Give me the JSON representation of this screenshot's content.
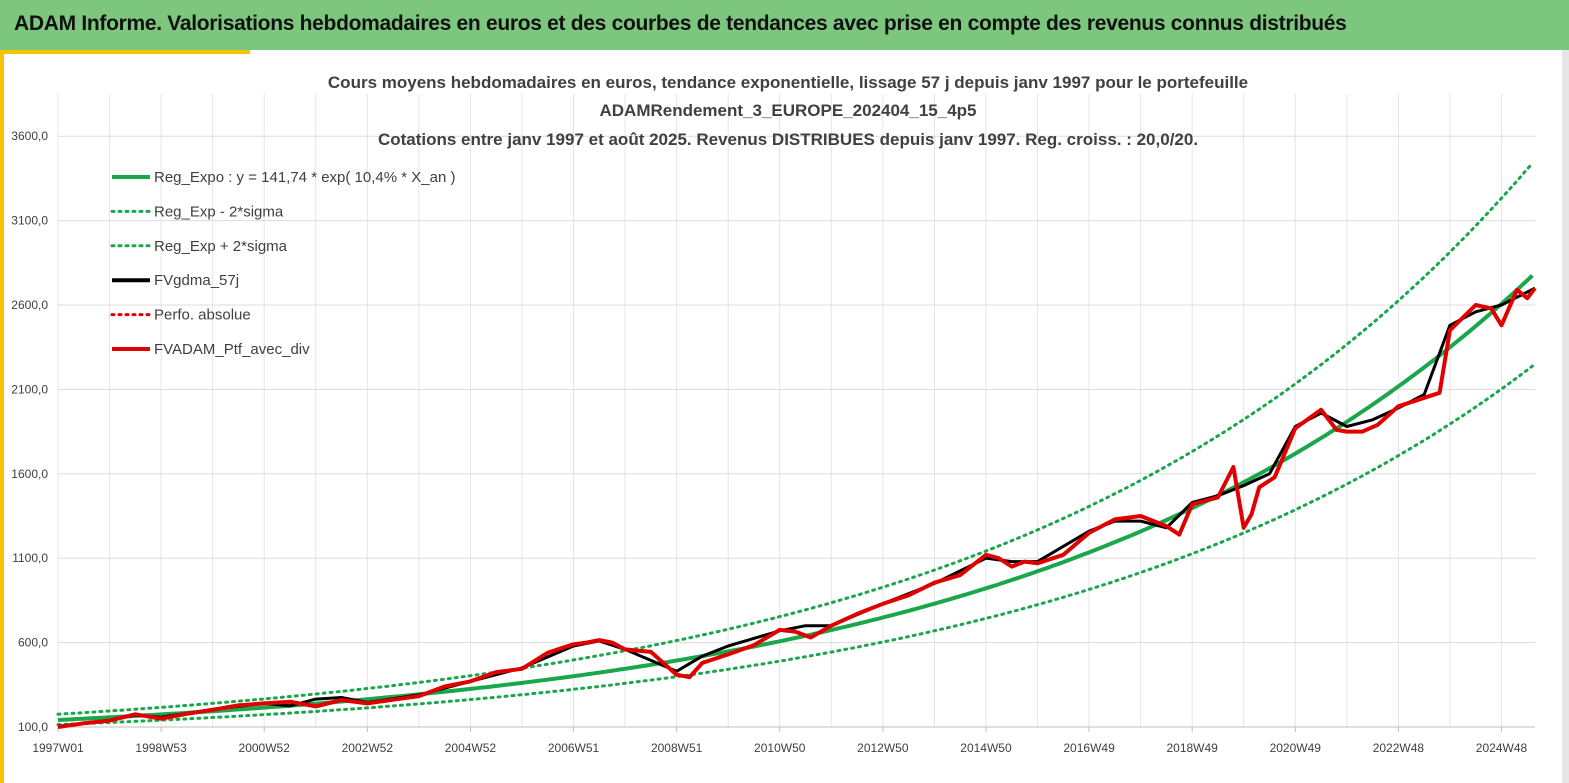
{
  "banner": {
    "title": "ADAM Informe. Valorisations hebdomadaires en euros et des courbes de tendances avec prise en compte des revenus connus distribués"
  },
  "chart_data": {
    "type": "line",
    "title": [
      "Cours moyens hebdomadaires  en euros, tendance exponentielle, lissage 57 j depuis janv 1997 pour le portefeuille",
      "ADAMRendement_3_EUROPE_202404_15_4p5",
      "Cotations entre janv 1997 et août 2025. Revenus DISTRIBUES depuis janv 1997. Reg. croiss. : 20,0/20."
    ],
    "x_tick_labels": [
      "1997W01",
      "1998W53",
      "2000W52",
      "2002W52",
      "2004W52",
      "2006W51",
      "2008W51",
      "2010W50",
      "2012W50",
      "2014W50",
      "2016W49",
      "2018W49",
      "2020W49",
      "2022W48",
      "2024W48"
    ],
    "x_tick_years": [
      1997.0,
      1999.0,
      2001.0,
      2003.0,
      2005.0,
      2007.0,
      2009.0,
      2011.0,
      2013.0,
      2015.0,
      2017.0,
      2019.0,
      2021.0,
      2023.0,
      2025.0
    ],
    "x_range": [
      1997.0,
      2025.65
    ],
    "ylim": [
      100,
      3850
    ],
    "y_ticks": [
      100,
      600,
      1100,
      1600,
      2100,
      2600,
      3100,
      3600
    ],
    "y_tick_labels": [
      "100,0",
      "600,0",
      "1100,0",
      "1600,0",
      "2100,0",
      "2600,0",
      "3100,0",
      "3600,0"
    ],
    "grid": true,
    "legend_position": "top-left",
    "regression": {
      "a": 141.74,
      "rate": 0.104,
      "sigma_factor": 1.24
    },
    "series": [
      {
        "name": "Reg_Expo : y = 141,74 * exp( 10,4% *  X_an )",
        "color": "#1aa64b",
        "style": "solid",
        "width": 4
      },
      {
        "name": "Reg_Exp - 2*sigma",
        "color": "#1aa64b",
        "style": "dotted",
        "width": 3
      },
      {
        "name": "Reg_Exp + 2*sigma",
        "color": "#1aa64b",
        "style": "dotted",
        "width": 3
      },
      {
        "name": "FVgdma_57j",
        "color": "#000000",
        "style": "solid",
        "width": 3,
        "x": [
          1997.0,
          1998.0,
          1998.5,
          1999.0,
          2000.0,
          2001.0,
          2001.5,
          2002.0,
          2002.5,
          2003.0,
          2004.0,
          2005.0,
          2006.0,
          2007.0,
          2007.5,
          2008.0,
          2009.0,
          2009.5,
          2010.0,
          2011.0,
          2011.5,
          2012.0,
          2013.0,
          2014.0,
          2015.0,
          2015.5,
          2016.0,
          2017.0,
          2017.5,
          2018.0,
          2018.5,
          2019.0,
          2019.5,
          2020.0,
          2020.5,
          2021.0,
          2021.5,
          2022.0,
          2022.5,
          2023.0,
          2023.5,
          2024.0,
          2024.5,
          2025.0,
          2025.65
        ],
        "values": [
          105,
          140,
          170,
          158,
          205,
          240,
          225,
          265,
          275,
          245,
          290,
          370,
          450,
          580,
          610,
          560,
          430,
          520,
          580,
          670,
          700,
          700,
          830,
          950,
          1100,
          1080,
          1080,
          1260,
          1320,
          1320,
          1280,
          1430,
          1470,
          1530,
          1600,
          1880,
          1960,
          1880,
          1920,
          1990,
          2070,
          2480,
          2560,
          2600,
          2700
        ]
      },
      {
        "name": "Perfo. absolue",
        "color": "#e00000",
        "style": "dotted",
        "width": 3
      },
      {
        "name": "FVADAM_Ptf_avec_div",
        "color": "#e00000",
        "style": "solid",
        "width": 4,
        "x": [
          1997.0,
          1997.5,
          1998.0,
          1998.5,
          1999.0,
          1999.5,
          2000.0,
          2000.5,
          2001.0,
          2001.5,
          2002.0,
          2002.5,
          2003.0,
          2003.5,
          2004.0,
          2004.5,
          2005.0,
          2005.5,
          2006.0,
          2006.5,
          2007.0,
          2007.25,
          2007.5,
          2007.75,
          2008.0,
          2008.5,
          2009.0,
          2009.25,
          2009.5,
          2010.0,
          2010.5,
          2011.0,
          2011.3,
          2011.6,
          2012.0,
          2012.5,
          2013.0,
          2013.5,
          2014.0,
          2014.5,
          2015.0,
          2015.25,
          2015.5,
          2015.75,
          2016.0,
          2016.5,
          2017.0,
          2017.5,
          2018.0,
          2018.5,
          2018.75,
          2019.0,
          2019.5,
          2019.8,
          2020.0,
          2020.15,
          2020.3,
          2020.6,
          2021.0,
          2021.5,
          2021.8,
          2022.0,
          2022.3,
          2022.6,
          2023.0,
          2023.5,
          2023.8,
          2024.0,
          2024.5,
          2024.8,
          2025.0,
          2025.3,
          2025.5,
          2025.65
        ],
        "values": [
          100,
          122,
          138,
          175,
          150,
          178,
          202,
          228,
          240,
          250,
          222,
          260,
          240,
          262,
          283,
          340,
          370,
          425,
          445,
          540,
          590,
          600,
          615,
          600,
          560,
          545,
          410,
          395,
          480,
          530,
          585,
          675,
          665,
          630,
          700,
          770,
          830,
          880,
          955,
          1000,
          1120,
          1100,
          1050,
          1080,
          1070,
          1120,
          1250,
          1330,
          1350,
          1290,
          1240,
          1420,
          1460,
          1640,
          1280,
          1360,
          1520,
          1580,
          1870,
          1980,
          1860,
          1850,
          1850,
          1890,
          2000,
          2050,
          2080,
          2450,
          2600,
          2580,
          2480,
          2690,
          2640,
          2700
        ]
      }
    ]
  }
}
